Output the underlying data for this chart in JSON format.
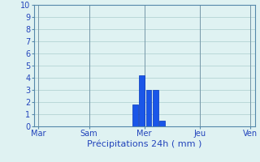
{
  "title": "",
  "xlabel": "Précipitations 24h ( mm )",
  "ylabel": "",
  "background_color": "#dff2f2",
  "grid_color": "#aacece",
  "bar_color": "#1a56e8",
  "bar_edge_color": "#0033bb",
  "ylim": [
    0,
    10
  ],
  "yticks": [
    0,
    1,
    2,
    3,
    4,
    5,
    6,
    7,
    8,
    9,
    10
  ],
  "xlim": [
    0,
    100
  ],
  "xtick_positions": [
    2,
    25,
    50,
    75,
    98
  ],
  "xtick_labels": [
    "Mar",
    "Sam",
    "Mer",
    "Jeu",
    "Ven"
  ],
  "bar_centers": [
    46,
    49,
    52,
    55,
    58
  ],
  "bar_heights": [
    1.8,
    4.2,
    3.0,
    3.0,
    0.5
  ],
  "bar_width": 2.5,
  "figsize": [
    3.2,
    2.0
  ],
  "dpi": 100,
  "tick_label_color": "#2244bb",
  "xlabel_color": "#2244bb",
  "xlabel_fontsize": 8,
  "tick_fontsize": 7,
  "spine_color": "#5588aa",
  "vline_positions": [
    2,
    25,
    50,
    75,
    98
  ],
  "vline_color": "#7799aa"
}
